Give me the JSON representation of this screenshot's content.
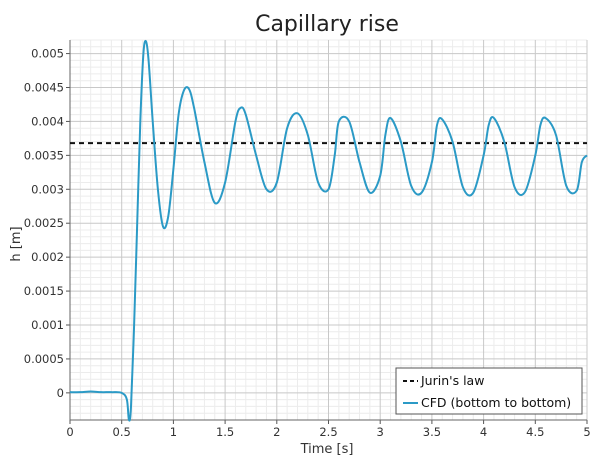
{
  "chart_data": {
    "type": "line",
    "title": "Capillary rise",
    "xlabel": "Time [s]",
    "ylabel": "h [m]",
    "xlim": [
      0,
      5
    ],
    "ylim": [
      -0.0004,
      0.0052
    ],
    "grid": true,
    "legend_position": "bottom-right",
    "x_ticks": [
      "0",
      "0.5",
      "1",
      "1.5",
      "2",
      "2.5",
      "3",
      "3.5",
      "4",
      "4.5",
      "5"
    ],
    "y_ticks": [
      "0",
      "0.0005",
      "0.001",
      "0.0015",
      "0.002",
      "0.0025",
      "0.003",
      "0.0035",
      "0.004",
      "0.0045",
      "0.005"
    ],
    "series": [
      {
        "name": "Jurin's law",
        "color": "#111111",
        "style": "dashed",
        "x": [
          0,
          5
        ],
        "y": [
          0.00368,
          0.00368
        ]
      },
      {
        "name": "CFD (bottom to bottom)",
        "color": "#2b9ac6",
        "style": "solid",
        "x": [
          0,
          0.1,
          0.2,
          0.3,
          0.4,
          0.5,
          0.55,
          0.57,
          0.59,
          0.62,
          0.65,
          0.68,
          0.71,
          0.735,
          0.76,
          0.8,
          0.85,
          0.9,
          0.95,
          1.0,
          1.05,
          1.1,
          1.15,
          1.2,
          1.3,
          1.4,
          1.5,
          1.6,
          1.65,
          1.7,
          1.8,
          1.9,
          2.0,
          2.1,
          2.2,
          2.3,
          2.4,
          2.5,
          2.56,
          2.6,
          2.7,
          2.8,
          2.9,
          3.0,
          3.05,
          3.1,
          3.2,
          3.3,
          3.4,
          3.5,
          3.55,
          3.6,
          3.7,
          3.8,
          3.9,
          4.0,
          4.05,
          4.1,
          4.2,
          4.3,
          4.4,
          4.5,
          4.55,
          4.6,
          4.7,
          4.8,
          4.9,
          4.95,
          5.0
        ],
        "y": [
          1e-05,
          1e-05,
          2e-05,
          1e-05,
          1e-05,
          0.0,
          -0.0001,
          -0.0004,
          -0.0002,
          0.001,
          0.0025,
          0.004,
          0.005,
          0.00518,
          0.0049,
          0.004,
          0.003,
          0.00245,
          0.0026,
          0.0033,
          0.0041,
          0.00445,
          0.00448,
          0.0042,
          0.0034,
          0.0028,
          0.0031,
          0.004,
          0.0042,
          0.0041,
          0.0035,
          0.003,
          0.0031,
          0.0039,
          0.00412,
          0.0038,
          0.0031,
          0.003,
          0.0035,
          0.004,
          0.004,
          0.0034,
          0.00295,
          0.0032,
          0.0038,
          0.00405,
          0.0037,
          0.00305,
          0.00295,
          0.0034,
          0.00395,
          0.00403,
          0.0037,
          0.00303,
          0.00295,
          0.0035,
          0.00395,
          0.00405,
          0.0037,
          0.00303,
          0.00296,
          0.0035,
          0.00395,
          0.00405,
          0.0038,
          0.00305,
          0.00298,
          0.0034,
          0.0035
        ]
      }
    ]
  }
}
